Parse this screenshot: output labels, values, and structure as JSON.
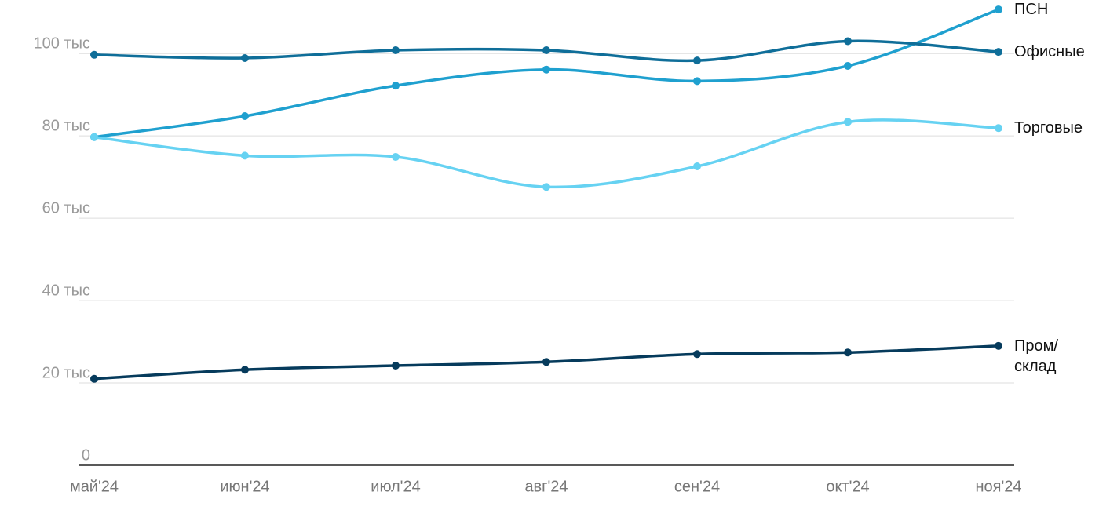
{
  "chart_data": {
    "type": "line",
    "categories": [
      "май'24",
      "июн'24",
      "июл'24",
      "авг'24",
      "сен'24",
      "окт'24",
      "ноя'24"
    ],
    "series": [
      {
        "name": "ПСН",
        "color": "#1fa0cf",
        "values": [
          79.7,
          84.8,
          92.2,
          96.1,
          93.3,
          97.0,
          110.7
        ]
      },
      {
        "name": "Офисные",
        "color": "#0f6e99",
        "values": [
          99.7,
          98.9,
          100.8,
          100.8,
          98.3,
          103.0,
          100.4
        ]
      },
      {
        "name": "Торговые",
        "color": "#66d2f2",
        "values": [
          79.7,
          75.2,
          74.9,
          67.6,
          72.6,
          83.4,
          81.9
        ]
      },
      {
        "name": "Пром/\nсклад",
        "color": "#063b5c",
        "values": [
          21.0,
          23.2,
          24.2,
          25.1,
          27.0,
          27.4,
          29.0
        ]
      }
    ],
    "ylim": [
      0,
      113
    ],
    "yticks": [
      0,
      {
        "value": 20,
        "label": "20 тыс"
      },
      {
        "value": 40,
        "label": "40 тыс"
      },
      {
        "value": 60,
        "label": "60 тыс"
      },
      {
        "value": 80,
        "label": "80 тыс"
      },
      {
        "value": 100,
        "label": "100 тыс"
      }
    ],
    "grid": true
  }
}
